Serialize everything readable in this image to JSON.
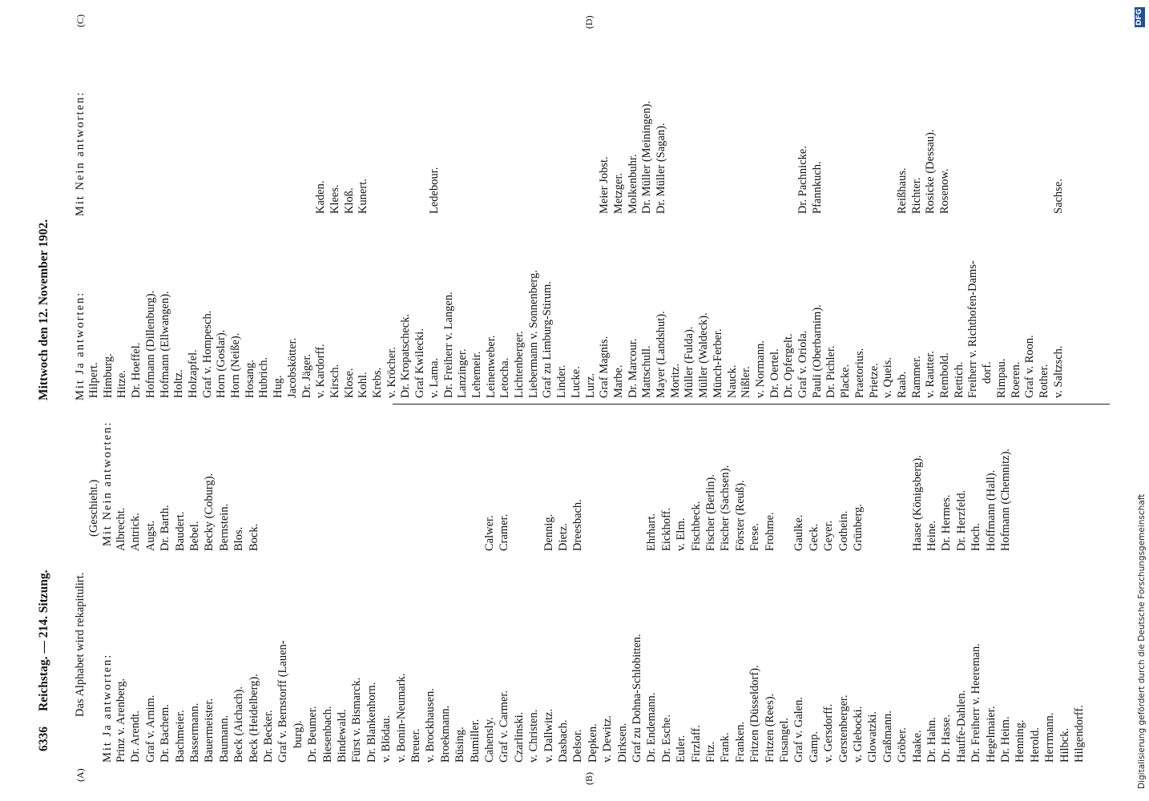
{
  "header": {
    "page_number": "6336",
    "left_title": "Reichstag. — 214. Sitzung.",
    "right_title": "Mittwoch den 12. November 1902."
  },
  "margin_marks": [
    "(A)",
    "(B)",
    "(C)",
    "(D)"
  ],
  "left_column": {
    "intro": "Das Alphabet wird rekapitulirt.",
    "note": "(Geschieht.)",
    "ja_heading": "Mit Ja antworten:",
    "nein_heading": "Mit Nein antworten:",
    "rows": [
      {
        "ja": "Prinz v. Arenberg.",
        "nein": "Albrecht."
      },
      {
        "ja": "Dr. Arendt.",
        "nein": "Antrick."
      },
      {
        "ja": "Graf v. Arnim.",
        "nein": "Augst."
      },
      {
        "ja": "Dr. Bachem.",
        "nein": "Dr. Barth."
      },
      {
        "ja": "Bachmeier.",
        "nein": "Baudert."
      },
      {
        "ja": "Bassermann.",
        "nein": "Bebel."
      },
      {
        "ja": "Bauermeister.",
        "nein": "Becky (Coburg)."
      },
      {
        "ja": "Baumann.",
        "nein": "Bernstein."
      },
      {
        "ja": "Beck (Aichach).",
        "nein": "Blos."
      },
      {
        "ja": "Beck (Heidelberg).",
        "nein": "Bock."
      },
      {
        "ja": "Dr. Becker."
      },
      {
        "ja": "Graf v. Bernstorff (Lauen-"
      },
      {
        "ja": "burg)."
      },
      {
        "ja": "Dr. Beumer."
      },
      {
        "ja": "Biesenbach."
      },
      {
        "ja": "Bindewald."
      },
      {
        "ja": "Fürst v. Bismarck."
      },
      {
        "ja": "Dr. Blankenhorn."
      },
      {
        "ja": "v. Blödau."
      },
      {
        "ja": "v. Bonin-Neumark."
      },
      {
        "ja": "Breuer."
      },
      {
        "ja": "v. Brockhausen."
      },
      {
        "ja": "Broekmann."
      },
      {
        "ja": "Büsing."
      },
      {
        "ja": "Bumiller."
      },
      {
        "ja": "Cahensly.",
        "nein": "Calwer."
      },
      {
        "ja": "Graf v. Carmer.",
        "nein": "Cramer."
      },
      {
        "ja": "Czarlinski."
      },
      {
        "ja": "v. Christen."
      },
      {
        "ja": "v. Dallwitz.",
        "nein": "Dennig."
      },
      {
        "ja": "Dasbach.",
        "nein": "Dietz."
      },
      {
        "ja": "Delsor.",
        "nein": "Dreesbach."
      },
      {
        "ja": "Depken."
      },
      {
        "ja": "v. Dewitz."
      },
      {
        "ja": "Dirksen."
      },
      {
        "ja": "Graf zu Dohna-Schlobitten."
      },
      {
        "ja": "Dr. Endemann.",
        "nein": "Ehrhart."
      },
      {
        "ja": "Dr. Esche.",
        "nein": "Eickhoff."
      },
      {
        "ja": "Euler.",
        "nein": "v. Elm."
      },
      {
        "ja": "Firzlaff.",
        "nein": "Fischbeck."
      },
      {
        "ja": "Fitz.",
        "nein": "Fischer (Berlin)."
      },
      {
        "ja": "Frank.",
        "nein": "Fischer (Sachsen)."
      },
      {
        "ja": "Franken.",
        "nein": "Förster (Reuß)."
      },
      {
        "ja": "Fritzen (Düsseldorf).",
        "nein": "Frese."
      },
      {
        "ja": "Fritzen (Rees).",
        "nein": "Frohme."
      },
      {
        "ja": "Fusangel."
      },
      {
        "ja": "Graf v. Galen.",
        "nein": "Gaulke."
      },
      {
        "ja": "Gamp.",
        "nein": "Geck."
      },
      {
        "ja": "v. Gersdorff.",
        "nein": "Geyer."
      },
      {
        "ja": "Gerstenberger.",
        "nein": "Gothein."
      },
      {
        "ja": "v. Glebocki.",
        "nein": "Grünberg."
      },
      {
        "ja": "Glowatzki."
      },
      {
        "ja": "Graßmann."
      },
      {
        "ja": "Gröber."
      },
      {
        "ja": "Haake.",
        "nein": "Haase (Königsberg)."
      },
      {
        "ja": "Dr. Hahn.",
        "nein": "Heine."
      },
      {
        "ja": "Dr. Hasse.",
        "nein": "Dr. Hermes."
      },
      {
        "ja": "Hauffe-Dahlen.",
        "nein": "Dr. Herzfeld."
      },
      {
        "ja": "Dr. Freiherr v. Heereman.",
        "nein": "Hoch."
      },
      {
        "ja": "Hegelmaier.",
        "nein": "Hoffmann (Hall)."
      },
      {
        "ja": "Dr. Heim.",
        "nein": "Hofmann (Chemnitz)."
      },
      {
        "ja": "Henning."
      },
      {
        "ja": "Herold."
      },
      {
        "ja": "Herrmann."
      },
      {
        "ja": "Hilbck."
      },
      {
        "ja": "Hilgendorff."
      }
    ]
  },
  "right_column": {
    "ja_heading": "Mit Ja antworten:",
    "nein_heading": "Mit Nein antworten:",
    "rows": [
      {
        "ja": "Hilpert."
      },
      {
        "ja": "Himburg."
      },
      {
        "ja": "Hitze."
      },
      {
        "ja": "Dr. Hoeffel."
      },
      {
        "ja": "Hofmann (Dillenburg)."
      },
      {
        "ja": "Hofmann (Ellwangen)."
      },
      {
        "ja": "Holtz."
      },
      {
        "ja": "Holzapfel."
      },
      {
        "ja": "Graf v. Hompesch."
      },
      {
        "ja": "Horn (Goslar)."
      },
      {
        "ja": "Horn (Neiße)."
      },
      {
        "ja": "Hosang."
      },
      {
        "ja": "Hubrich."
      },
      {
        "ja": "Hug."
      },
      {
        "ja": "Jacobskötter."
      },
      {
        "ja": "Dr. Jäger."
      },
      {
        "ja": "v. Kardorff.",
        "nein": "Kaden."
      },
      {
        "ja": "Kirsch.",
        "nein": "Klees."
      },
      {
        "ja": "Klose.",
        "nein": "Kloß."
      },
      {
        "ja": "Kohl.",
        "nein": "Kunert."
      },
      {
        "ja": "Krebs."
      },
      {
        "ja": "v. Kröcher."
      },
      {
        "ja": "Dr. Kropatscheck."
      },
      {
        "ja": "Graf Kwilecki."
      },
      {
        "ja": "v. Lama.",
        "nein": "Ledebour."
      },
      {
        "ja": "Dr. Freiherr v. Langen."
      },
      {
        "ja": "Lanzinger."
      },
      {
        "ja": "Lehemeir."
      },
      {
        "ja": "Leinenweber."
      },
      {
        "ja": "Letocha."
      },
      {
        "ja": "Lichtenberger."
      },
      {
        "ja": "Liebermann v. Sonnenberg."
      },
      {
        "ja": "Graf zu Limburg-Stirum."
      },
      {
        "ja": "Linder."
      },
      {
        "ja": "Lucke."
      },
      {
        "ja": "Lurz."
      },
      {
        "ja": "Graf Magnis.",
        "nein": "Meier Jobst."
      },
      {
        "ja": "Marbe.",
        "nein": "Metzger."
      },
      {
        "ja": "Dr. Marcour.",
        "nein": "Molkenbuhr."
      },
      {
        "ja": "Mattschull.",
        "nein": "Dr. Müller (Meiningen)."
      },
      {
        "ja": "Mayer (Landshut).",
        "nein": "Dr. Müller (Sagan)."
      },
      {
        "ja": "Moritz."
      },
      {
        "ja": "Müller (Fulda)."
      },
      {
        "ja": "Müller (Waldeck)."
      },
      {
        "ja": "Münch-Ferber."
      },
      {
        "ja": "Nauck."
      },
      {
        "ja": "Nißler."
      },
      {
        "ja": "v. Normann."
      },
      {
        "ja": "Dr. Oertel."
      },
      {
        "ja": "Dr. Opfergelt."
      },
      {
        "ja": "Graf v. Oriola.",
        "nein": "Dr. Pachnicke."
      },
      {
        "ja": "Pauli (Oberbarnim).",
        "nein": "Pfannkuch."
      },
      {
        "ja": "Dr. Pichler."
      },
      {
        "ja": "Placke."
      },
      {
        "ja": "Praetorius."
      },
      {
        "ja": "Prietze."
      },
      {
        "ja": "v. Queis."
      },
      {
        "ja": "Raab.",
        "nein": "Reißhaus."
      },
      {
        "ja": "Rammer.",
        "nein": "Richter."
      },
      {
        "ja": "v. Rautter.",
        "nein": "Rosicke (Dessau)."
      },
      {
        "ja": "Rembold.",
        "nein": "Rosenow."
      },
      {
        "ja": "Rettich."
      },
      {
        "ja": "Freiherr v. Richthofen-Dams-"
      },
      {
        "ja": "dorf."
      },
      {
        "ja": "Rimpau."
      },
      {
        "ja": "Roeren."
      },
      {
        "ja": "Graf v. Roon."
      },
      {
        "ja": "Rother."
      },
      {
        "ja": "v. Saltzsch.",
        "nein": "Sachse."
      }
    ]
  },
  "footer_note": "Digitalisierung gefördert durch die Deutsche Forschungsgemeinschaft",
  "logo": "DFG"
}
